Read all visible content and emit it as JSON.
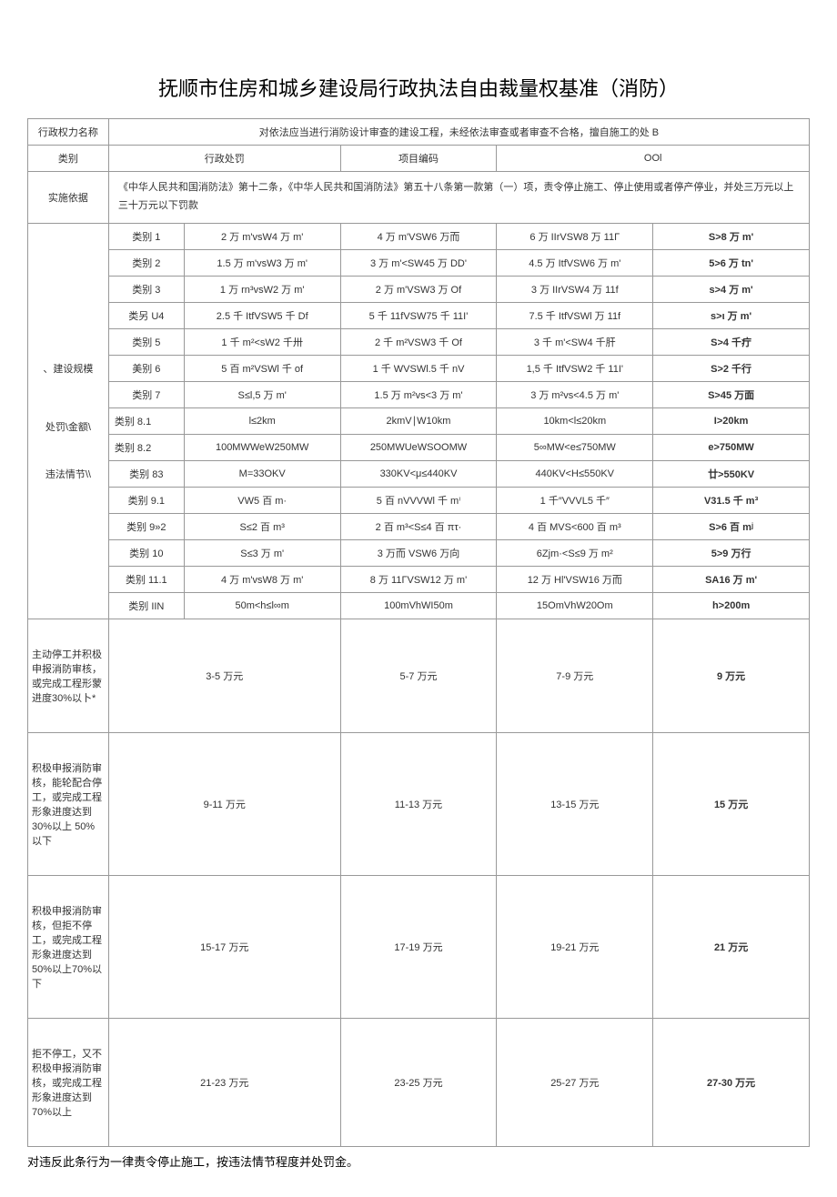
{
  "title": "抚顺市住房和城乡建设局行政执法自由裁量权基准（消防）",
  "row1": {
    "label": "行政权力名称",
    "value": "对依法应当进行消防设计审查的建设工程，未经依法审查或者审查不合格，擅自施工的处 B"
  },
  "row2": {
    "label": "类别",
    "c1": "行政处罚",
    "c2": "项目编码",
    "c3": "OOl"
  },
  "row3": {
    "label": "实施依据",
    "value": "《中华人民共和国消防法》第十二条，《中华人民共和国消防法》第五十八条第一款第（一）项，责令停止施工、停止使用或者停产停业，并处三万元以上三十万元以下罚款"
  },
  "groupLabel1": "、建设规模",
  "groupLabel2": "处罚\\金额\\",
  "groupLabel3": "违法情节\\\\",
  "categories": [
    {
      "name": "类别 1",
      "v1": "2 万 m'vsW4 万 m'",
      "v2": "4 万 m'VSW6 万而",
      "v3": "6 万 IIrVSW8 万 11Γ",
      "v4": "S>8 万 m'"
    },
    {
      "name": "类别 2",
      "v1": "1.5 万 m'vsW3 万 m'",
      "v2": "3 万 m'<SW45 万 DD'",
      "v3": "4.5 万 ItfVSW6 万 m'",
      "v4": "5>6 万 tn'"
    },
    {
      "name": "类别 3",
      "v1": "1 万 rn³vsW2 万 m'",
      "v2": "2 万 m'VSW3 万 Of",
      "v3": "3 万 IIrVSW4 万 11f",
      "v4": "s>4 万 m'"
    },
    {
      "name": "类另 U4",
      "v1": "2.5 千 ItfVSW5 千 Df",
      "v2": "5 千 11fVSW75 千 11I'",
      "v3": "7.5 千 ItfVSWl 万 11f",
      "v4": "s>ι 万 m'"
    },
    {
      "name": "类别 5",
      "v1": "1 千 m²<sW2 千卅",
      "v2": "2 千 m²VSW3 千 Of",
      "v3": "3 千 m'<SW4 千肝",
      "v4": "S>4 千疔"
    },
    {
      "name": "美别 6",
      "v1": "5 百 m²VSWl 千 of",
      "v2": "1 千 WVSWl.5 千 nV",
      "v3": "1,5 千 ItfVSW2 千 11I'",
      "v4": "S>2 千行"
    },
    {
      "name": "类别 7",
      "v1": "S≤l,5 万 m'",
      "v2": "1.5 万 m²vs<3 万 m'",
      "v3": "3 万 m²vs<4.5 万 m'",
      "v4": "S>45 万面"
    },
    {
      "name": "类别 8.1",
      "v1": "l≤2km",
      "v2": "2kmV∣W10km",
      "v3": "10km<l≤20km",
      "v4": "I>20km"
    },
    {
      "name": "类别 8.2",
      "v1": "100MWWeW250MW",
      "v2": "250MWUeWSOOMW",
      "v3": "5∞MW<e≤750MW",
      "v4": "e>750MW"
    },
    {
      "name": "类别 83",
      "v1": "M=33OKV",
      "v2": "330KV<μ≤440KV",
      "v3": "440KV<H≤550KV",
      "v4": "廿>550KV"
    },
    {
      "name": "类别 9.1",
      "v1": "VW5 百 m·",
      "v2": "5 百 nVVVWl 千 mⁱ",
      "v3": "1 千″VVVL5 千″",
      "v4": "V31.5 千 m³"
    },
    {
      "name": "类别 9»2",
      "v1": "S≤2 百 m³",
      "v2": "2 百 m³<S≤4 百 πτ·",
      "v3": "4 百 MVS<600 百 m³",
      "v4": "S>6 百 mʲ"
    },
    {
      "name": "类别 10",
      "v1": "S≤3 万 m'",
      "v2": "3 万而 VSW6 万向",
      "v3": "6Zjm·<S≤9 万 m²",
      "v4": "5>9 万行"
    },
    {
      "name": "类别 11.1",
      "v1": "4 万 m'vsW8 万 m'",
      "v2": "8 万 11ΓVSW12 万 m'",
      "v3": "12 万 Hl'VSW16 万而",
      "v4": "SA16 万 m'"
    },
    {
      "name": "类别 IIN",
      "v1": "50m<h≤l∞m",
      "v2": "100mVhWI50m",
      "v3": "15OmVhW20Om",
      "v4": "h>200m"
    }
  ],
  "penalties": [
    {
      "desc": "主动停工并积极申报消防审核，或完成工程形蒙进度30%以卜*",
      "v1": "3-5 万元",
      "v2": "5-7 万元",
      "v3": "7-9 万元",
      "v4": "9 万元"
    },
    {
      "desc": "积极申报消防审核，能轮配合停工，或完成工程形象进度达到 30%以上 50%以下",
      "v1": "9-11 万元",
      "v2": "11-13 万元",
      "v3": "13-15 万元",
      "v4": "15 万元"
    },
    {
      "desc": "积极申报消防审核，但拒不停工，或完成工程形象进度达到 50%以上70%以下",
      "v1": "15-17 万元",
      "v2": "17-19 万元",
      "v3": "19-21 万元",
      "v4": "21 万元"
    },
    {
      "desc": "拒不停工，又不积极申报消防审核，或完成工程形象进度达到 70%以上",
      "v1": "21-23 万元",
      "v2": "23-25 万元",
      "v3": "25-27 万元",
      "v4": "27-30 万元"
    }
  ],
  "footnote": "对违反此条行为一律责令停止施工，按违法情节程度并处罚金。"
}
